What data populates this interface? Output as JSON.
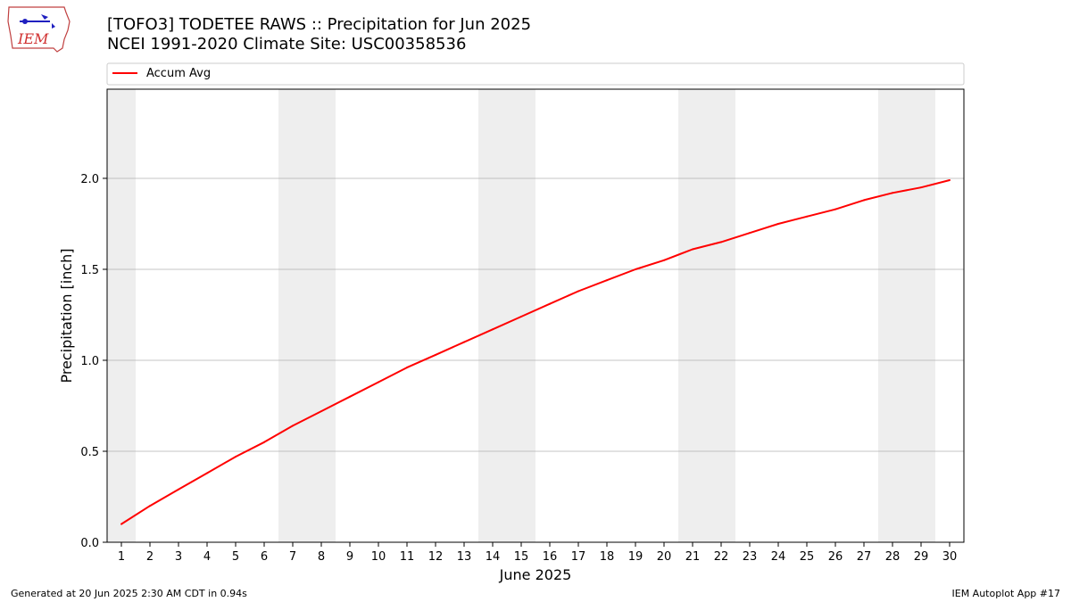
{
  "header": {
    "title_line1": "[TOFO3] TODETEE RAWS :: Precipitation for Jun 2025",
    "title_line2": "NCEI 1991-2020 Climate Site: USC00358536"
  },
  "logo": {
    "text": "IEM",
    "icon": "iem-iowa-logo"
  },
  "footer": {
    "generated": "Generated at 20 Jun 2025 2:30 AM CDT in 0.94s",
    "app": "IEM Autoplot App #17"
  },
  "colors": {
    "line": "#ff0000",
    "weekend_shade": "#eeeeee",
    "grid": "#b0b0b0"
  },
  "chart_data": {
    "type": "line",
    "title": "[TOFO3] TODETEE RAWS :: Precipitation for Jun 2025",
    "subtitle": "NCEI 1991-2020 Climate Site: USC00358536",
    "xlabel": "June 2025",
    "ylabel": "Precipitation [inch]",
    "x": [
      1,
      2,
      3,
      4,
      5,
      6,
      7,
      8,
      9,
      10,
      11,
      12,
      13,
      14,
      15,
      16,
      17,
      18,
      19,
      20,
      21,
      22,
      23,
      24,
      25,
      26,
      27,
      28,
      29,
      30
    ],
    "series": [
      {
        "name": "Accum Avg",
        "values": [
          0.1,
          0.2,
          0.29,
          0.38,
          0.47,
          0.55,
          0.64,
          0.72,
          0.8,
          0.88,
          0.96,
          1.03,
          1.1,
          1.17,
          1.24,
          1.31,
          1.38,
          1.44,
          1.5,
          1.55,
          1.61,
          1.65,
          1.7,
          1.75,
          1.79,
          1.83,
          1.88,
          1.92,
          1.95,
          1.99
        ]
      }
    ],
    "xlim": [
      0.5,
      30.5
    ],
    "ylim": [
      0,
      2.49
    ],
    "yticks": [
      0.0,
      0.5,
      1.0,
      1.5,
      2.0
    ],
    "ytick_labels": [
      "0.0",
      "0.5",
      "1.0",
      "1.5",
      "2.0"
    ],
    "xticks": [
      1,
      2,
      3,
      4,
      5,
      6,
      7,
      8,
      9,
      10,
      11,
      12,
      13,
      14,
      15,
      16,
      17,
      18,
      19,
      20,
      21,
      22,
      23,
      24,
      25,
      26,
      27,
      28,
      29,
      30
    ],
    "xtick_labels": [
      "1",
      "2",
      "3",
      "4",
      "5",
      "6",
      "7",
      "8",
      "9",
      "10",
      "11",
      "12",
      "13",
      "14",
      "15",
      "16",
      "17",
      "18",
      "19",
      "20",
      "21",
      "22",
      "23",
      "24",
      "25",
      "26",
      "27",
      "28",
      "29",
      "30"
    ],
    "weekend_days": [
      1,
      7,
      8,
      14,
      15,
      21,
      22,
      28,
      29
    ],
    "grid": "y",
    "legend_position": "top, above plot"
  }
}
